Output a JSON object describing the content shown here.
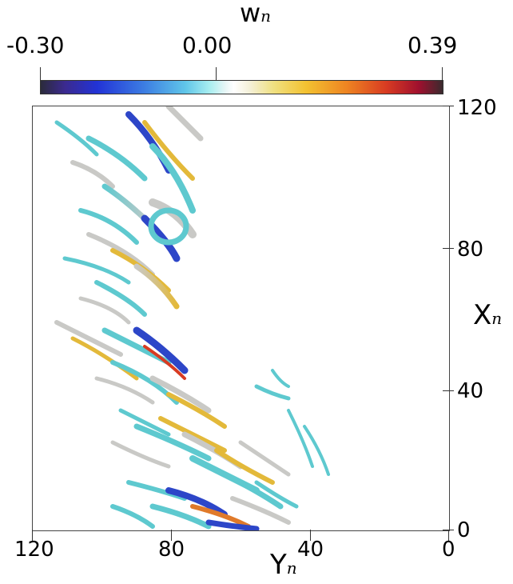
{
  "colorbar": {
    "title_main": "w",
    "title_sub": "n",
    "min_label": "-0.30",
    "mid_label": "0.00",
    "max_label": "0.39",
    "colormap": [
      "#2b2b3b",
      "#3b2a8f",
      "#2233d6",
      "#3d7fe3",
      "#60c6e8",
      "#e8f6f6",
      "#f0e080",
      "#f3c231",
      "#ee8522",
      "#d83b22",
      "#a0102e"
    ]
  },
  "x_axis": {
    "title_main": "Y",
    "title_sub": "n",
    "ticks": [
      "120",
      "80",
      "40",
      "0"
    ]
  },
  "y_axis": {
    "title_main": "X",
    "title_sub": "n",
    "ticks": [
      "120",
      "80",
      "40",
      "0"
    ]
  },
  "colors": {
    "teal": "#5ec9cf",
    "grey": "#c9c9c6",
    "blue": "#2d46c8",
    "yellow": "#e3b93a",
    "orange": "#e07a2a"
  }
}
